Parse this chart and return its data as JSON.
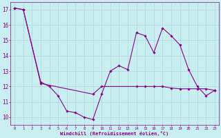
{
  "xlabel": "Windchill (Refroidissement éolien,°C)",
  "background_color": "#c8eef0",
  "grid_color": "#b0d8e0",
  "line_color": "#880088",
  "xlim": [
    -0.5,
    23.5
  ],
  "ylim": [
    9.5,
    17.5
  ],
  "yticks": [
    10,
    11,
    12,
    13,
    14,
    15,
    16,
    17
  ],
  "xticks": [
    0,
    1,
    2,
    3,
    4,
    5,
    6,
    7,
    8,
    9,
    10,
    11,
    12,
    13,
    14,
    15,
    16,
    17,
    18,
    19,
    20,
    21,
    22,
    23
  ],
  "series1_x": [
    0,
    1,
    3,
    4,
    5,
    6,
    7,
    8,
    9,
    10,
    11,
    12,
    13,
    14,
    15,
    16,
    17,
    18,
    19,
    20,
    21,
    22,
    23
  ],
  "series1_y": [
    17.1,
    17.0,
    12.3,
    12.0,
    11.4,
    10.4,
    10.3,
    10.0,
    9.85,
    11.5,
    13.0,
    13.35,
    13.1,
    15.5,
    15.3,
    14.2,
    15.8,
    15.3,
    14.7,
    13.1,
    12.0,
    11.4,
    11.75
  ],
  "series2_x": [
    0,
    1,
    3,
    9,
    10,
    14,
    15,
    16,
    17,
    18,
    19,
    20,
    21,
    22,
    23
  ],
  "series2_y": [
    17.1,
    17.0,
    12.2,
    11.5,
    12.0,
    12.0,
    12.0,
    12.0,
    12.0,
    11.9,
    11.85,
    11.85,
    11.85,
    11.85,
    11.75
  ]
}
